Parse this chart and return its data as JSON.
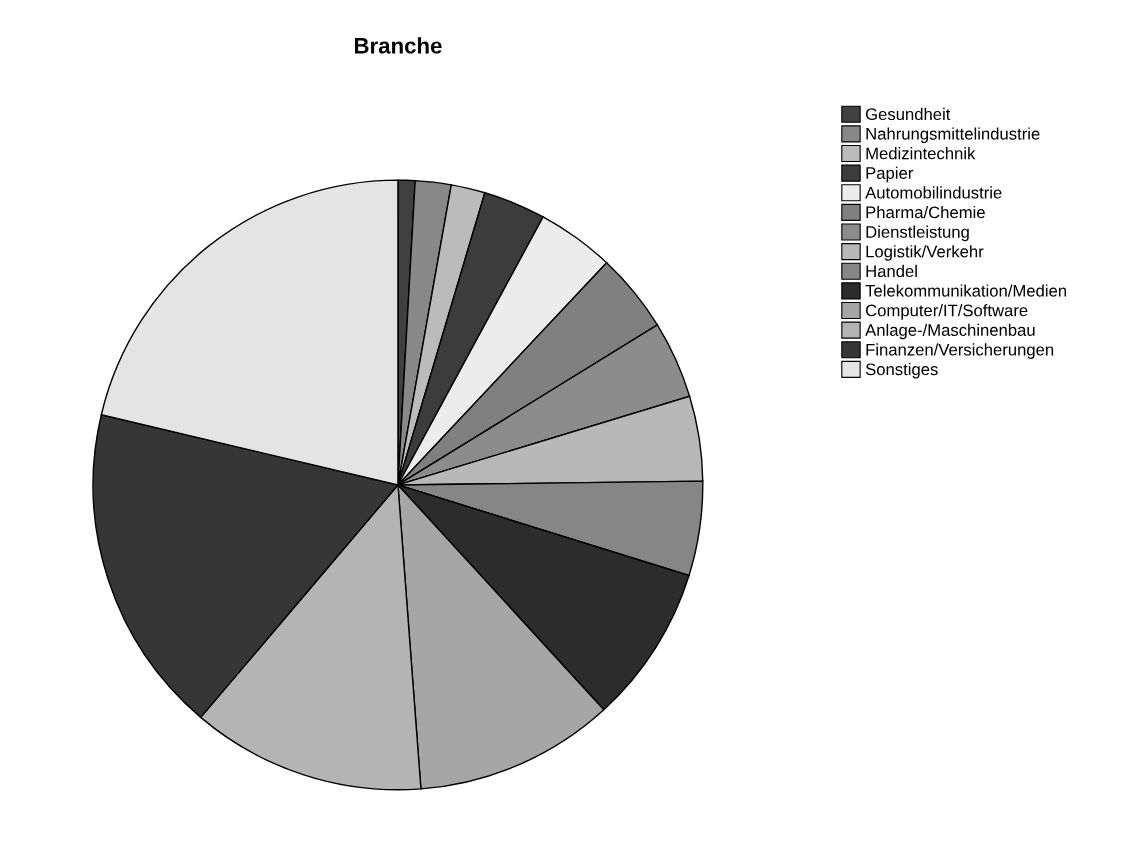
{
  "chart_data": {
    "type": "pie",
    "title": "Branche",
    "categories": [
      "Gesundheit",
      "Nahrungsmittelindustrie",
      "Medizintechnik",
      "Papier",
      "Automobilindustrie",
      "Pharma/Chemie",
      "Dienstleistung",
      "Logistik/Verkehr",
      "Handel",
      "Telekommunikation/Medien",
      "Computer/IT/Software",
      "Anlage-/Maschinenbau",
      "Finanzen/Versicherungen",
      "Sonstiges"
    ],
    "values": [
      0.9,
      1.9,
      1.8,
      3.3,
      4.1,
      4.2,
      4.1,
      4.5,
      5.0,
      8.4,
      10.6,
      12.4,
      17.5,
      21.3
    ],
    "colors": [
      "#404040",
      "#888888",
      "#bbbbbb",
      "#3c3c3c",
      "#ececec",
      "#808080",
      "#8c8c8c",
      "#b8b8b8",
      "#868686",
      "#2c2c2c",
      "#a6a6a6",
      "#b4b4b4",
      "#363636",
      "#e4e4e4"
    ],
    "legend": "top right"
  }
}
